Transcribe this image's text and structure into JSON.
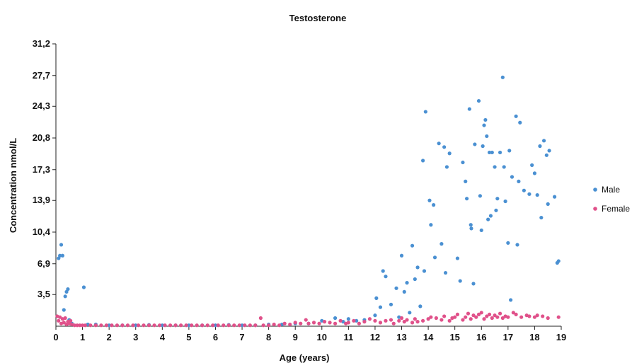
{
  "chart_data": {
    "type": "scatter",
    "title": "Testosterone",
    "xlabel": "Age (years)",
    "ylabel": "Concentration nmol/L",
    "xlim": [
      0,
      19
    ],
    "ylim": [
      0,
      31.2
    ],
    "x_ticks": [
      0,
      1,
      2,
      3,
      4,
      5,
      6,
      7,
      8,
      9,
      10,
      11,
      12,
      13,
      14,
      15,
      16,
      17,
      18,
      19
    ],
    "y_ticks": [
      "3,5",
      "6,9",
      "10,4",
      "13,9",
      "17,3",
      "20,8",
      "24,3",
      "27,7",
      "31,2"
    ],
    "y_tick_values": [
      3.5,
      6.9,
      10.4,
      13.9,
      17.3,
      20.8,
      24.3,
      27.7,
      31.2
    ],
    "grid": false,
    "legend_position": "right",
    "series": [
      {
        "name": "Male",
        "color": "#4a90d2",
        "points": [
          [
            0.1,
            7.5
          ],
          [
            0.15,
            7.8
          ],
          [
            0.2,
            9.0
          ],
          [
            0.25,
            7.8
          ],
          [
            0.3,
            1.8
          ],
          [
            0.35,
            3.3
          ],
          [
            0.4,
            3.8
          ],
          [
            0.45,
            4.1
          ],
          [
            0.5,
            0.7
          ],
          [
            0.6,
            0.3
          ],
          [
            1.05,
            4.3
          ],
          [
            1.2,
            0.2
          ],
          [
            1.5,
            0.2
          ],
          [
            2.0,
            0.1
          ],
          [
            2.5,
            0.1
          ],
          [
            3.0,
            0.1
          ],
          [
            3.5,
            0.15
          ],
          [
            4.0,
            0.1
          ],
          [
            4.5,
            0.1
          ],
          [
            5.0,
            0.1
          ],
          [
            5.5,
            0.1
          ],
          [
            6.0,
            0.1
          ],
          [
            6.5,
            0.15
          ],
          [
            7.0,
            0.1
          ],
          [
            7.5,
            0.1
          ],
          [
            8.0,
            0.2
          ],
          [
            8.5,
            0.2
          ],
          [
            9.0,
            0.3
          ],
          [
            9.5,
            0.3
          ],
          [
            10.0,
            0.6
          ],
          [
            10.5,
            0.9
          ],
          [
            10.8,
            0.5
          ],
          [
            11.0,
            0.8
          ],
          [
            11.3,
            0.6
          ],
          [
            11.6,
            0.7
          ],
          [
            12.0,
            1.2
          ],
          [
            12.05,
            3.1
          ],
          [
            12.2,
            2.1
          ],
          [
            12.3,
            6.1
          ],
          [
            12.4,
            5.5
          ],
          [
            12.6,
            2.4
          ],
          [
            12.8,
            4.2
          ],
          [
            12.9,
            1.0
          ],
          [
            13.0,
            7.8
          ],
          [
            13.1,
            3.8
          ],
          [
            13.2,
            4.8
          ],
          [
            13.3,
            1.5
          ],
          [
            13.4,
            8.9
          ],
          [
            13.5,
            5.2
          ],
          [
            13.6,
            6.5
          ],
          [
            13.7,
            2.2
          ],
          [
            13.8,
            18.3
          ],
          [
            13.85,
            6.1
          ],
          [
            13.9,
            23.7
          ],
          [
            14.05,
            13.9
          ],
          [
            14.1,
            11.2
          ],
          [
            14.2,
            13.4
          ],
          [
            14.25,
            7.6
          ],
          [
            14.4,
            20.2
          ],
          [
            14.5,
            9.1
          ],
          [
            14.6,
            19.8
          ],
          [
            14.65,
            5.9
          ],
          [
            14.7,
            17.6
          ],
          [
            14.8,
            19.1
          ],
          [
            15.1,
            7.5
          ],
          [
            15.2,
            5.0
          ],
          [
            15.3,
            18.1
          ],
          [
            15.4,
            16.0
          ],
          [
            15.45,
            14.1
          ],
          [
            15.55,
            24.0
          ],
          [
            15.6,
            11.2
          ],
          [
            15.62,
            10.8
          ],
          [
            15.7,
            4.7
          ],
          [
            15.75,
            20.1
          ],
          [
            15.9,
            24.9
          ],
          [
            15.95,
            14.4
          ],
          [
            16.0,
            10.6
          ],
          [
            16.05,
            19.9
          ],
          [
            16.1,
            22.2
          ],
          [
            16.15,
            22.8
          ],
          [
            16.2,
            21.0
          ],
          [
            16.25,
            11.8
          ],
          [
            16.3,
            19.2
          ],
          [
            16.35,
            12.2
          ],
          [
            16.4,
            19.2
          ],
          [
            16.5,
            17.6
          ],
          [
            16.55,
            12.8
          ],
          [
            16.6,
            14.1
          ],
          [
            16.7,
            19.2
          ],
          [
            16.8,
            27.5
          ],
          [
            16.85,
            17.6
          ],
          [
            16.9,
            13.8
          ],
          [
            17.0,
            9.2
          ],
          [
            17.05,
            19.4
          ],
          [
            17.1,
            2.9
          ],
          [
            17.15,
            16.5
          ],
          [
            17.3,
            23.2
          ],
          [
            17.35,
            9.0
          ],
          [
            17.4,
            16.0
          ],
          [
            17.45,
            22.5
          ],
          [
            17.6,
            15.0
          ],
          [
            17.8,
            14.6
          ],
          [
            17.9,
            17.8
          ],
          [
            18.0,
            16.9
          ],
          [
            18.1,
            14.5
          ],
          [
            18.2,
            19.9
          ],
          [
            18.25,
            12.0
          ],
          [
            18.35,
            20.5
          ],
          [
            18.45,
            18.9
          ],
          [
            18.5,
            13.5
          ],
          [
            18.55,
            19.4
          ],
          [
            18.75,
            14.3
          ],
          [
            18.85,
            7.0
          ],
          [
            18.9,
            7.2
          ]
        ]
      },
      {
        "name": "Female",
        "color": "#e0518a",
        "points": [
          [
            0.05,
            1.1
          ],
          [
            0.1,
            0.6
          ],
          [
            0.15,
            1.0
          ],
          [
            0.2,
            0.3
          ],
          [
            0.25,
            0.8
          ],
          [
            0.3,
            0.4
          ],
          [
            0.35,
            0.9
          ],
          [
            0.4,
            0.2
          ],
          [
            0.45,
            0.5
          ],
          [
            0.5,
            0.3
          ],
          [
            0.55,
            0.6
          ],
          [
            0.6,
            0.2
          ],
          [
            0.7,
            0.1
          ],
          [
            0.8,
            0.1
          ],
          [
            0.9,
            0.1
          ],
          [
            1.0,
            0.1
          ],
          [
            1.1,
            0.1
          ],
          [
            1.3,
            0.1
          ],
          [
            1.5,
            0.1
          ],
          [
            1.7,
            0.1
          ],
          [
            1.9,
            0.1
          ],
          [
            2.1,
            0.1
          ],
          [
            2.3,
            0.1
          ],
          [
            2.5,
            0.1
          ],
          [
            2.7,
            0.1
          ],
          [
            2.9,
            0.1
          ],
          [
            3.1,
            0.1
          ],
          [
            3.3,
            0.1
          ],
          [
            3.5,
            0.1
          ],
          [
            3.7,
            0.1
          ],
          [
            3.9,
            0.1
          ],
          [
            4.1,
            0.1
          ],
          [
            4.3,
            0.1
          ],
          [
            4.5,
            0.1
          ],
          [
            4.7,
            0.1
          ],
          [
            4.9,
            0.1
          ],
          [
            5.1,
            0.1
          ],
          [
            5.3,
            0.1
          ],
          [
            5.5,
            0.1
          ],
          [
            5.7,
            0.1
          ],
          [
            5.9,
            0.1
          ],
          [
            6.1,
            0.1
          ],
          [
            6.3,
            0.1
          ],
          [
            6.5,
            0.1
          ],
          [
            6.7,
            0.1
          ],
          [
            6.9,
            0.1
          ],
          [
            7.1,
            0.1
          ],
          [
            7.3,
            0.1
          ],
          [
            7.5,
            0.1
          ],
          [
            7.7,
            0.9
          ],
          [
            7.8,
            0.1
          ],
          [
            8.0,
            0.1
          ],
          [
            8.2,
            0.2
          ],
          [
            8.4,
            0.1
          ],
          [
            8.6,
            0.3
          ],
          [
            8.8,
            0.2
          ],
          [
            9.0,
            0.4
          ],
          [
            9.2,
            0.3
          ],
          [
            9.4,
            0.7
          ],
          [
            9.5,
            0.3
          ],
          [
            9.7,
            0.4
          ],
          [
            9.9,
            0.3
          ],
          [
            10.1,
            0.5
          ],
          [
            10.3,
            0.4
          ],
          [
            10.5,
            0.3
          ],
          [
            10.7,
            0.6
          ],
          [
            10.9,
            0.3
          ],
          [
            11.0,
            0.4
          ],
          [
            11.2,
            0.6
          ],
          [
            11.4,
            0.3
          ],
          [
            11.6,
            0.5
          ],
          [
            11.8,
            0.8
          ],
          [
            12.0,
            0.6
          ],
          [
            12.2,
            0.4
          ],
          [
            12.4,
            0.6
          ],
          [
            12.6,
            0.7
          ],
          [
            12.7,
            0.3
          ],
          [
            12.9,
            0.6
          ],
          [
            13.0,
            0.9
          ],
          [
            13.1,
            0.5
          ],
          [
            13.2,
            0.7
          ],
          [
            13.4,
            0.4
          ],
          [
            13.5,
            0.8
          ],
          [
            13.6,
            0.5
          ],
          [
            13.8,
            0.6
          ],
          [
            14.0,
            0.8
          ],
          [
            14.1,
            1.0
          ],
          [
            14.3,
            0.9
          ],
          [
            14.5,
            0.7
          ],
          [
            14.6,
            1.1
          ],
          [
            14.8,
            0.6
          ],
          [
            14.9,
            0.9
          ],
          [
            15.0,
            1.0
          ],
          [
            15.1,
            1.3
          ],
          [
            15.3,
            0.7
          ],
          [
            15.4,
            1.0
          ],
          [
            15.5,
            1.4
          ],
          [
            15.6,
            0.8
          ],
          [
            15.7,
            1.2
          ],
          [
            15.8,
            1.0
          ],
          [
            15.9,
            1.3
          ],
          [
            16.0,
            1.5
          ],
          [
            16.1,
            0.8
          ],
          [
            16.2,
            1.1
          ],
          [
            16.3,
            1.3
          ],
          [
            16.4,
            0.9
          ],
          [
            16.5,
            1.2
          ],
          [
            16.6,
            1.0
          ],
          [
            16.7,
            1.4
          ],
          [
            16.8,
            0.9
          ],
          [
            16.9,
            1.1
          ],
          [
            17.0,
            1.0
          ],
          [
            17.2,
            1.5
          ],
          [
            17.3,
            1.3
          ],
          [
            17.5,
            1.0
          ],
          [
            17.7,
            1.2
          ],
          [
            17.8,
            1.1
          ],
          [
            18.0,
            1.0
          ],
          [
            18.1,
            1.2
          ],
          [
            18.3,
            1.1
          ],
          [
            18.5,
            0.9
          ],
          [
            18.9,
            1.0
          ]
        ]
      }
    ]
  }
}
